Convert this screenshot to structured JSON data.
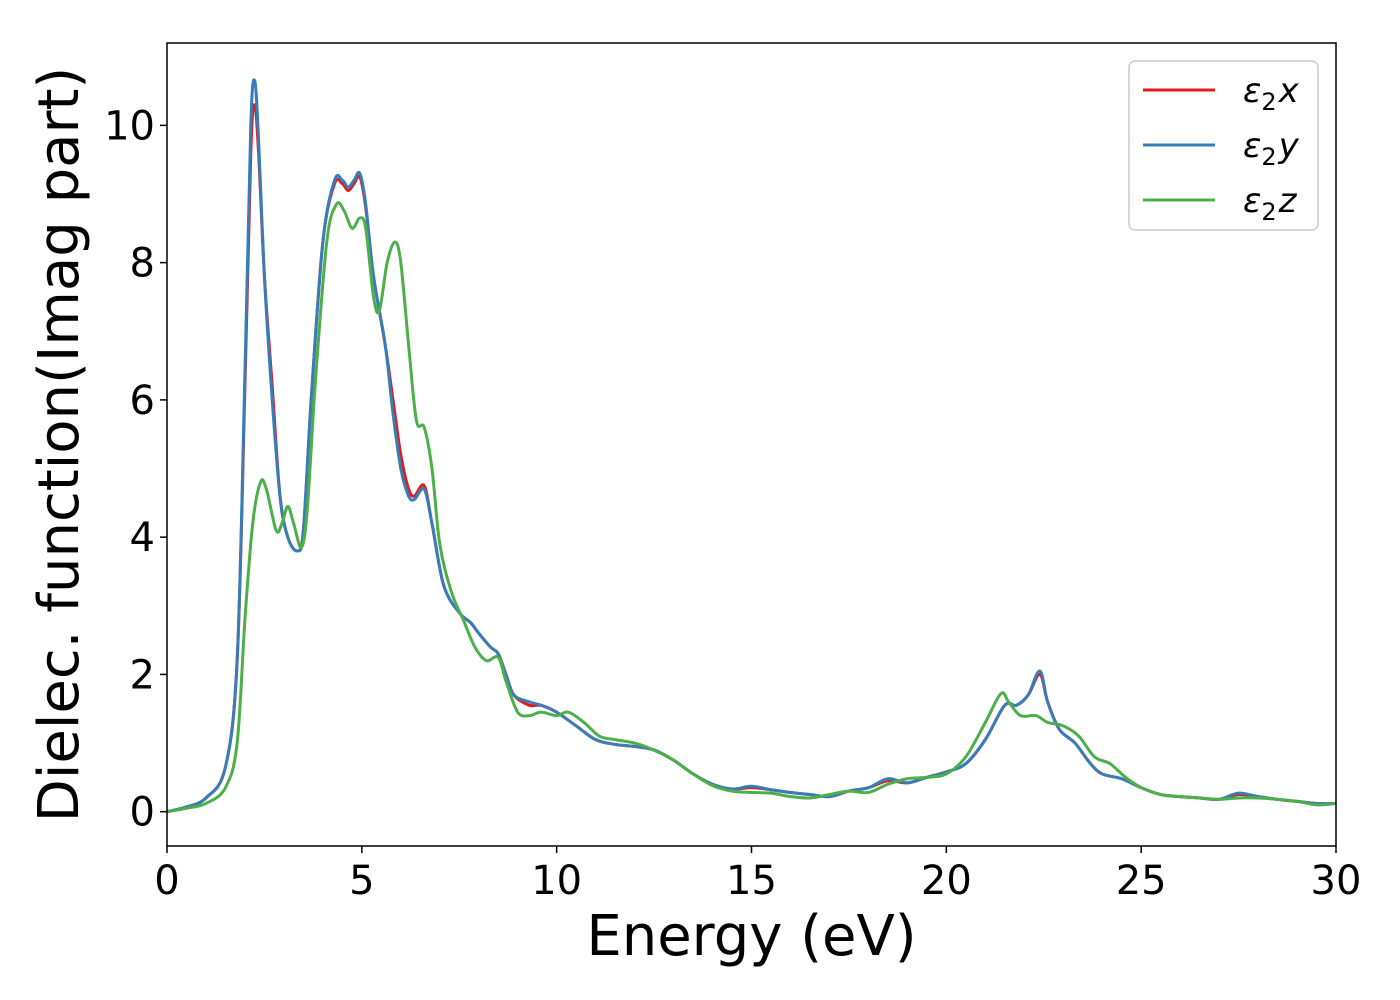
{
  "chart_data": {
    "type": "line",
    "title": "",
    "xlabel": "Energy (eV)",
    "ylabel": "Dielec. function(Imag part)",
    "xlim": [
      0,
      30
    ],
    "ylim": [
      -0.5,
      11.2
    ],
    "xticks": [
      0,
      5,
      10,
      15,
      20,
      25,
      30
    ],
    "yticks": [
      0,
      2,
      4,
      6,
      8,
      10
    ],
    "grid": false,
    "legend_position": "top-right",
    "series": [
      {
        "name": "ε2x",
        "legend_base": "ε",
        "legend_sub": "2",
        "legend_var": "x",
        "color": "#e41a1c",
        "points": [
          [
            0,
            0
          ],
          [
            0.5,
            0.07
          ],
          [
            1,
            0.2
          ],
          [
            1.5,
            0.65
          ],
          [
            1.8,
            2.2
          ],
          [
            2,
            6.2
          ],
          [
            2.15,
            9.6
          ],
          [
            2.25,
            10.3
          ],
          [
            2.35,
            9.6
          ],
          [
            2.5,
            7.8
          ],
          [
            2.7,
            6.2
          ],
          [
            2.9,
            4.6
          ],
          [
            3.1,
            4.0
          ],
          [
            3.35,
            3.8
          ],
          [
            3.5,
            4.1
          ],
          [
            3.7,
            6.0
          ],
          [
            4,
            8.3
          ],
          [
            4.3,
            9.15
          ],
          [
            4.5,
            9.15
          ],
          [
            4.65,
            9.05
          ],
          [
            4.8,
            9.15
          ],
          [
            4.95,
            9.25
          ],
          [
            5.1,
            8.8
          ],
          [
            5.3,
            7.8
          ],
          [
            5.6,
            6.8
          ],
          [
            5.8,
            6.0
          ],
          [
            6,
            5.2
          ],
          [
            6.2,
            4.7
          ],
          [
            6.35,
            4.6
          ],
          [
            6.6,
            4.75
          ],
          [
            6.8,
            4.2
          ],
          [
            7.1,
            3.3
          ],
          [
            7.5,
            2.9
          ],
          [
            7.8,
            2.75
          ],
          [
            8,
            2.6
          ],
          [
            8.3,
            2.4
          ],
          [
            8.5,
            2.3
          ],
          [
            8.7,
            2.0
          ],
          [
            8.9,
            1.7
          ],
          [
            9.3,
            1.55
          ],
          [
            9.6,
            1.55
          ],
          [
            10,
            1.45
          ],
          [
            10.5,
            1.25
          ],
          [
            11,
            1.05
          ],
          [
            11.5,
            0.98
          ],
          [
            12,
            0.95
          ],
          [
            12.5,
            0.9
          ],
          [
            13,
            0.75
          ],
          [
            13.5,
            0.55
          ],
          [
            14,
            0.4
          ],
          [
            14.5,
            0.33
          ],
          [
            15,
            0.35
          ],
          [
            15.5,
            0.32
          ],
          [
            16,
            0.28
          ],
          [
            16.5,
            0.25
          ],
          [
            17,
            0.22
          ],
          [
            17.5,
            0.3
          ],
          [
            18,
            0.35
          ],
          [
            18.5,
            0.45
          ],
          [
            19,
            0.42
          ],
          [
            19.5,
            0.5
          ],
          [
            20,
            0.58
          ],
          [
            20.5,
            0.7
          ],
          [
            21,
            1.05
          ],
          [
            21.5,
            1.55
          ],
          [
            21.8,
            1.55
          ],
          [
            22.1,
            1.7
          ],
          [
            22.4,
            2.0
          ],
          [
            22.6,
            1.6
          ],
          [
            22.9,
            1.2
          ],
          [
            23.3,
            1.0
          ],
          [
            23.7,
            0.7
          ],
          [
            24,
            0.55
          ],
          [
            24.5,
            0.48
          ],
          [
            25,
            0.35
          ],
          [
            25.5,
            0.25
          ],
          [
            26,
            0.22
          ],
          [
            26.5,
            0.2
          ],
          [
            27,
            0.18
          ],
          [
            27.5,
            0.25
          ],
          [
            28,
            0.22
          ],
          [
            28.5,
            0.18
          ],
          [
            29,
            0.15
          ],
          [
            29.5,
            0.12
          ],
          [
            30,
            0.12
          ]
        ]
      },
      {
        "name": "ε2y",
        "legend_base": "ε",
        "legend_sub": "2",
        "legend_var": "y",
        "color": "#377eb8",
        "points": [
          [
            0,
            0
          ],
          [
            0.5,
            0.07
          ],
          [
            1,
            0.2
          ],
          [
            1.5,
            0.65
          ],
          [
            1.8,
            2.2
          ],
          [
            2,
            6.4
          ],
          [
            2.15,
            10.0
          ],
          [
            2.25,
            10.65
          ],
          [
            2.35,
            9.8
          ],
          [
            2.5,
            7.8
          ],
          [
            2.7,
            6.0
          ],
          [
            2.9,
            4.6
          ],
          [
            3.1,
            4.0
          ],
          [
            3.35,
            3.8
          ],
          [
            3.5,
            4.1
          ],
          [
            3.7,
            6.0
          ],
          [
            4,
            8.3
          ],
          [
            4.3,
            9.2
          ],
          [
            4.5,
            9.2
          ],
          [
            4.65,
            9.1
          ],
          [
            4.8,
            9.2
          ],
          [
            4.95,
            9.3
          ],
          [
            5.1,
            8.85
          ],
          [
            5.3,
            7.8
          ],
          [
            5.6,
            6.8
          ],
          [
            5.8,
            5.8
          ],
          [
            6,
            5.0
          ],
          [
            6.2,
            4.6
          ],
          [
            6.35,
            4.55
          ],
          [
            6.6,
            4.7
          ],
          [
            6.8,
            4.2
          ],
          [
            7.1,
            3.3
          ],
          [
            7.5,
            2.9
          ],
          [
            7.8,
            2.75
          ],
          [
            8,
            2.6
          ],
          [
            8.3,
            2.4
          ],
          [
            8.5,
            2.3
          ],
          [
            8.7,
            2.0
          ],
          [
            8.9,
            1.7
          ],
          [
            9.3,
            1.6
          ],
          [
            9.6,
            1.55
          ],
          [
            10,
            1.45
          ],
          [
            10.5,
            1.25
          ],
          [
            11,
            1.05
          ],
          [
            11.5,
            0.98
          ],
          [
            12,
            0.95
          ],
          [
            12.5,
            0.9
          ],
          [
            13,
            0.75
          ],
          [
            13.5,
            0.55
          ],
          [
            14,
            0.4
          ],
          [
            14.5,
            0.33
          ],
          [
            15,
            0.37
          ],
          [
            15.5,
            0.32
          ],
          [
            16,
            0.28
          ],
          [
            16.5,
            0.25
          ],
          [
            17,
            0.22
          ],
          [
            17.5,
            0.3
          ],
          [
            18,
            0.35
          ],
          [
            18.5,
            0.48
          ],
          [
            19,
            0.42
          ],
          [
            19.5,
            0.5
          ],
          [
            20,
            0.58
          ],
          [
            20.5,
            0.7
          ],
          [
            21,
            1.05
          ],
          [
            21.5,
            1.55
          ],
          [
            21.8,
            1.55
          ],
          [
            22.1,
            1.7
          ],
          [
            22.4,
            2.05
          ],
          [
            22.6,
            1.6
          ],
          [
            22.9,
            1.2
          ],
          [
            23.3,
            1.0
          ],
          [
            23.7,
            0.7
          ],
          [
            24,
            0.55
          ],
          [
            24.5,
            0.48
          ],
          [
            25,
            0.35
          ],
          [
            25.5,
            0.25
          ],
          [
            26,
            0.22
          ],
          [
            26.5,
            0.2
          ],
          [
            27,
            0.18
          ],
          [
            27.5,
            0.27
          ],
          [
            28,
            0.22
          ],
          [
            28.5,
            0.18
          ],
          [
            29,
            0.15
          ],
          [
            29.5,
            0.12
          ],
          [
            30,
            0.12
          ]
        ]
      },
      {
        "name": "ε2z",
        "legend_base": "ε",
        "legend_sub": "2",
        "legend_var": "z",
        "color": "#4daf4a",
        "points": [
          [
            0,
            0
          ],
          [
            0.5,
            0.05
          ],
          [
            1,
            0.12
          ],
          [
            1.5,
            0.35
          ],
          [
            1.8,
            1.0
          ],
          [
            2,
            2.8
          ],
          [
            2.2,
            4.2
          ],
          [
            2.4,
            4.8
          ],
          [
            2.55,
            4.7
          ],
          [
            2.8,
            4.1
          ],
          [
            2.95,
            4.2
          ],
          [
            3.1,
            4.45
          ],
          [
            3.25,
            4.2
          ],
          [
            3.45,
            3.85
          ],
          [
            3.6,
            4.4
          ],
          [
            3.8,
            6.2
          ],
          [
            4.1,
            8.3
          ],
          [
            4.35,
            8.85
          ],
          [
            4.55,
            8.75
          ],
          [
            4.75,
            8.5
          ],
          [
            4.95,
            8.65
          ],
          [
            5.1,
            8.5
          ],
          [
            5.3,
            7.5
          ],
          [
            5.45,
            7.3
          ],
          [
            5.65,
            8.0
          ],
          [
            5.85,
            8.3
          ],
          [
            6,
            8.0
          ],
          [
            6.2,
            6.8
          ],
          [
            6.4,
            5.7
          ],
          [
            6.6,
            5.6
          ],
          [
            6.8,
            5.0
          ],
          [
            7,
            3.9
          ],
          [
            7.3,
            3.2
          ],
          [
            7.6,
            2.8
          ],
          [
            7.9,
            2.4
          ],
          [
            8.2,
            2.2
          ],
          [
            8.5,
            2.25
          ],
          [
            8.7,
            1.9
          ],
          [
            9,
            1.45
          ],
          [
            9.3,
            1.4
          ],
          [
            9.6,
            1.45
          ],
          [
            10,
            1.4
          ],
          [
            10.3,
            1.45
          ],
          [
            10.7,
            1.3
          ],
          [
            11.1,
            1.1
          ],
          [
            11.5,
            1.05
          ],
          [
            12,
            1.0
          ],
          [
            12.4,
            0.92
          ],
          [
            13,
            0.75
          ],
          [
            13.5,
            0.55
          ],
          [
            14,
            0.38
          ],
          [
            14.5,
            0.3
          ],
          [
            15,
            0.28
          ],
          [
            15.5,
            0.27
          ],
          [
            16,
            0.22
          ],
          [
            16.5,
            0.2
          ],
          [
            17,
            0.25
          ],
          [
            17.5,
            0.3
          ],
          [
            18,
            0.28
          ],
          [
            18.5,
            0.4
          ],
          [
            19,
            0.48
          ],
          [
            19.5,
            0.5
          ],
          [
            20,
            0.55
          ],
          [
            20.5,
            0.8
          ],
          [
            21,
            1.3
          ],
          [
            21.4,
            1.72
          ],
          [
            21.6,
            1.6
          ],
          [
            21.9,
            1.4
          ],
          [
            22.3,
            1.4
          ],
          [
            22.6,
            1.3
          ],
          [
            23,
            1.25
          ],
          [
            23.4,
            1.1
          ],
          [
            23.8,
            0.8
          ],
          [
            24.2,
            0.7
          ],
          [
            24.6,
            0.5
          ],
          [
            25,
            0.35
          ],
          [
            25.5,
            0.25
          ],
          [
            26,
            0.22
          ],
          [
            26.5,
            0.2
          ],
          [
            27,
            0.18
          ],
          [
            27.5,
            0.2
          ],
          [
            28,
            0.2
          ],
          [
            28.5,
            0.18
          ],
          [
            29,
            0.15
          ],
          [
            29.5,
            0.1
          ],
          [
            30,
            0.12
          ]
        ]
      }
    ]
  }
}
